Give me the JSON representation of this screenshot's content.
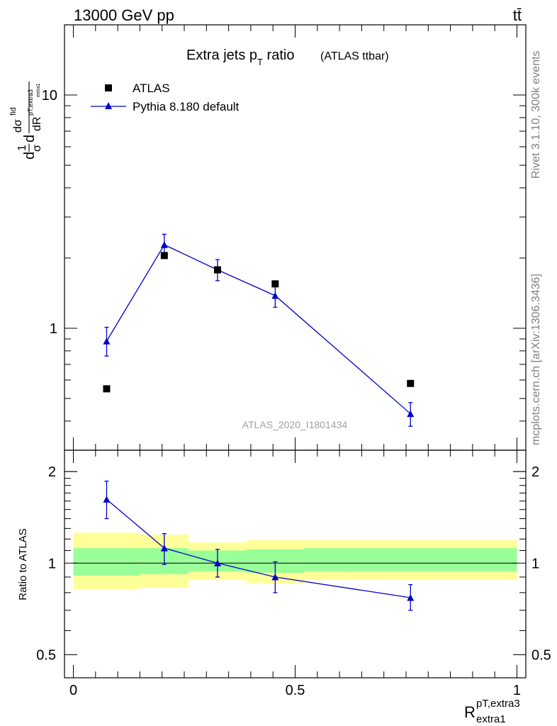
{
  "header": {
    "energy": "13000 GeV pp",
    "process": "tt̄"
  },
  "side_text": {
    "rivet": "Rivet 3.1.10,  300k events",
    "mcplots": "mcplots.cern.ch [arXiv:1306.3436]"
  },
  "colors": {
    "data": "#000000",
    "mc": "#0000cc",
    "band_inner": "#99ff99",
    "band_outer": "#ffff99",
    "analysis_label": "#a0a0a0"
  },
  "chart_data": [
    {
      "type": "scatter",
      "title": "Extra jets p_T ratio",
      "title_main": "Extra jets p",
      "title_sub": "T",
      "title_tail": " ratio",
      "title_note": "(ATLAS ttbar)",
      "analysis": "ATLAS_2020_I1801434",
      "ylabel": "1/σ dσ^fid/dR",
      "ylabel_parts": {
        "d": "d",
        "one": "1",
        "sigma": "σ",
        "dsig": "dσ",
        "fid": "fid",
        "dR": "dR",
        "sup": "pT,extra3",
        "sub": "extra1"
      },
      "yscale": "log",
      "ylim": [
        0.3,
        20
      ],
      "xlim": [
        -0.02,
        1.02
      ],
      "yticks": [
        1,
        10
      ],
      "ytick_labels": [
        "1",
        "10"
      ],
      "legend_position": "top-left",
      "series": [
        {
          "name": "ATLAS",
          "marker": "square",
          "x": [
            0.075,
            0.205,
            0.325,
            0.455,
            0.76
          ],
          "y": [
            0.55,
            2.05,
            1.78,
            1.55,
            0.58
          ]
        },
        {
          "name": "Pythia 8.180 default",
          "marker": "triangle",
          "x": [
            0.075,
            0.205,
            0.325,
            0.455,
            0.76
          ],
          "y": [
            0.88,
            2.28,
            1.78,
            1.38,
            0.43
          ],
          "yerr_low": [
            0.12,
            0.25,
            0.18,
            0.15,
            0.05
          ],
          "yerr_high": [
            0.13,
            0.25,
            0.19,
            0.16,
            0.05
          ]
        }
      ]
    },
    {
      "type": "line",
      "ylabel": "Ratio to ATLAS",
      "yscale": "log",
      "ylim": [
        0.42,
        2.35
      ],
      "xlim": [
        -0.02,
        1.02
      ],
      "xlabel": "R",
      "xlabel_sup": "pT,extra3",
      "xlabel_sub": "extra1",
      "xticks": [
        0,
        0.5,
        1
      ],
      "xtick_labels": [
        "0",
        "0.5",
        "1"
      ],
      "yticks": [
        0.5,
        1,
        2
      ],
      "ytick_labels": [
        "0.5",
        "1",
        "2"
      ],
      "bands": [
        {
          "x0": 0.0,
          "x1": 0.15,
          "inner": [
            0.91,
            1.12
          ],
          "outer": [
            0.82,
            1.26
          ]
        },
        {
          "x0": 0.15,
          "x1": 0.26,
          "inner": [
            0.92,
            1.12
          ],
          "outer": [
            0.83,
            1.24
          ]
        },
        {
          "x0": 0.26,
          "x1": 0.39,
          "inner": [
            0.94,
            1.1
          ],
          "outer": [
            0.88,
            1.17
          ]
        },
        {
          "x0": 0.39,
          "x1": 0.52,
          "inner": [
            0.93,
            1.11
          ],
          "outer": [
            0.86,
            1.19
          ]
        },
        {
          "x0": 0.52,
          "x1": 1.0,
          "inner": [
            0.94,
            1.12
          ],
          "outer": [
            0.88,
            1.19
          ]
        }
      ],
      "series": [
        {
          "name": "Pythia 8.180 default",
          "x": [
            0.075,
            0.205,
            0.325,
            0.455,
            0.76
          ],
          "y": [
            1.62,
            1.12,
            1.0,
            0.9,
            0.77
          ],
          "yerr_low": [
            0.22,
            0.13,
            0.1,
            0.1,
            0.07
          ],
          "yerr_high": [
            0.24,
            0.13,
            0.11,
            0.11,
            0.08
          ]
        }
      ]
    }
  ]
}
